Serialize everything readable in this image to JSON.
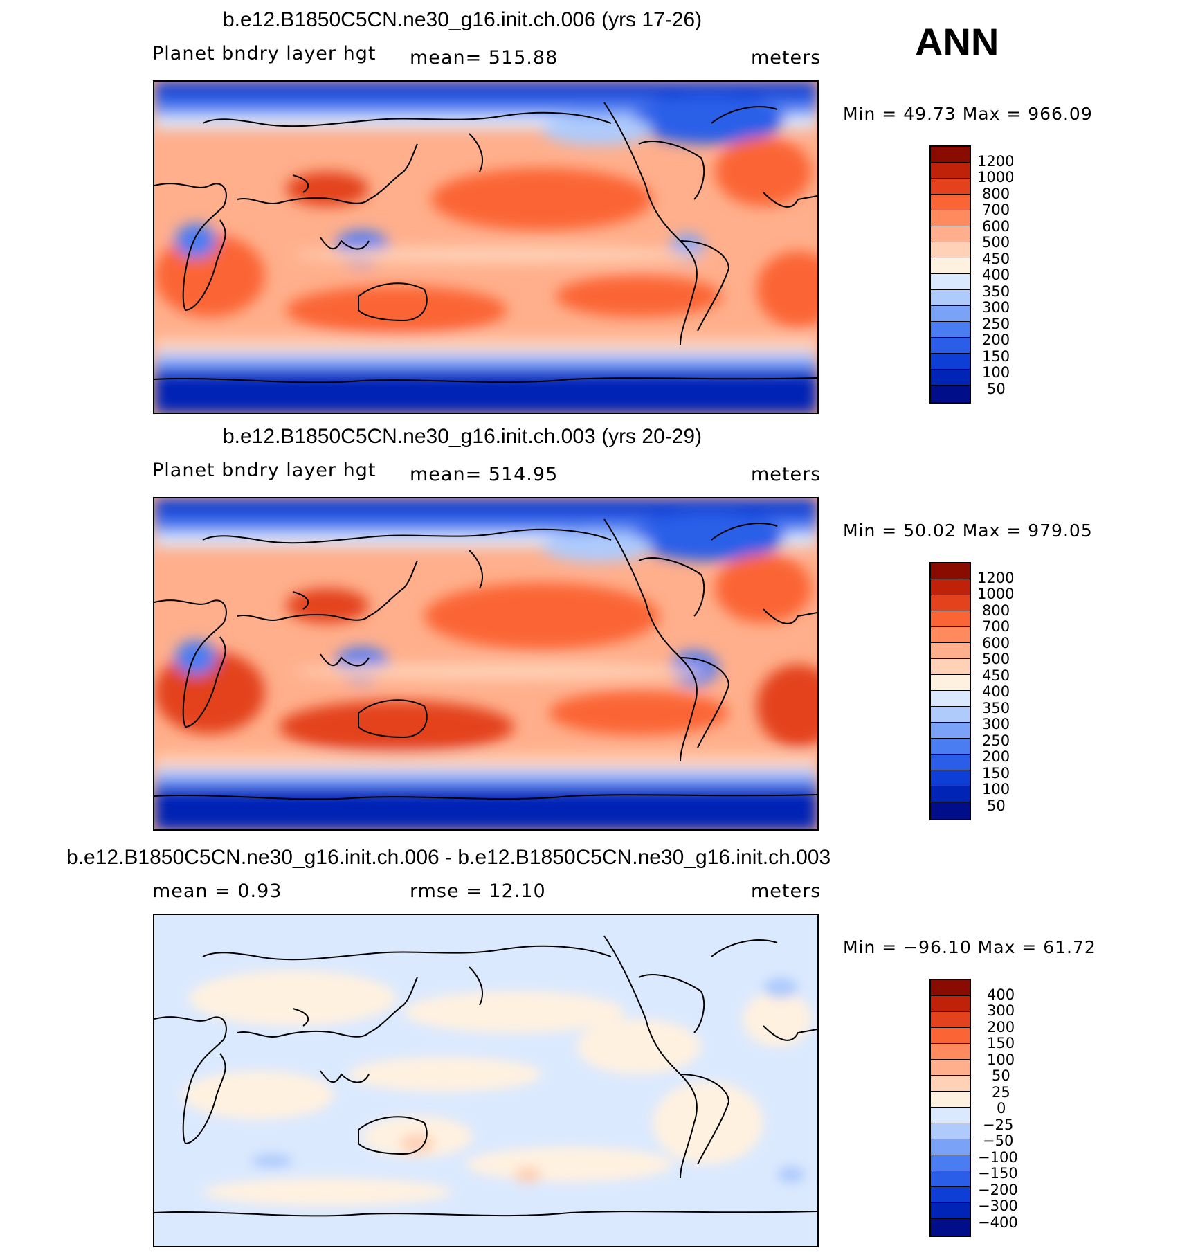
{
  "season": "ANN",
  "colors": {
    "abs_scale": [
      "#000e8a",
      "#0024b5",
      "#0d3fd6",
      "#2a5ee8",
      "#4b7df2",
      "#7aa3f8",
      "#aecbfc",
      "#dbe9fe",
      "#fff1e0",
      "#ffd2b8",
      "#ffaf8c",
      "#ff8a5e",
      "#fb6535",
      "#e3421c",
      "#bf2208",
      "#8a0b00"
    ],
    "diff_scale": [
      "#000e8a",
      "#0024b5",
      "#0d3fd6",
      "#2a5ee8",
      "#4b7df2",
      "#7aa3f8",
      "#aecbfc",
      "#dbe9fe",
      "#fff1e0",
      "#ffd2b8",
      "#ffaf8c",
      "#ff8a5e",
      "#fb6535",
      "#e3421c",
      "#bf2208",
      "#8a0b00"
    ]
  },
  "panels": [
    {
      "title": "b.e12.B1850C5CN.ne30_g16.init.ch.006 (yrs 17-26)",
      "variable": "Planet bndry layer hgt",
      "stat_left": "mean=  515.88",
      "units": "meters",
      "minmax": "Min  =    49.73  Max  =  966.09",
      "colorbar_labels": [
        "1200",
        "1000",
        "800",
        "700",
        "600",
        "500",
        "450",
        "400",
        "350",
        "300",
        "250",
        "200",
        "150",
        "100",
        "50"
      ]
    },
    {
      "title": "b.e12.B1850C5CN.ne30_g16.init.ch.003 (yrs 20-29)",
      "variable": "Planet bndry layer hgt",
      "stat_left": "mean=  514.95",
      "units": "meters",
      "minmax": "Min  =    50.02  Max  =  979.05",
      "colorbar_labels": [
        "1200",
        "1000",
        "800",
        "700",
        "600",
        "500",
        "450",
        "400",
        "350",
        "300",
        "250",
        "200",
        "150",
        "100",
        "50"
      ]
    },
    {
      "title": "b.e12.B1850C5CN.ne30_g16.init.ch.006 - b.e12.B1850C5CN.ne30_g16.init.ch.003",
      "stat_left": "mean  =      0.93",
      "stat_mid": "rmse  =     12.10",
      "units": "meters",
      "minmax": "Min  =  −96.10  Max  =    61.72",
      "colorbar_labels": [
        "400",
        "300",
        "200",
        "150",
        "100",
        "50",
        "25",
        "0",
        "−25",
        "−50",
        "−100",
        "−150",
        "−200",
        "−300",
        "−400"
      ]
    }
  ]
}
